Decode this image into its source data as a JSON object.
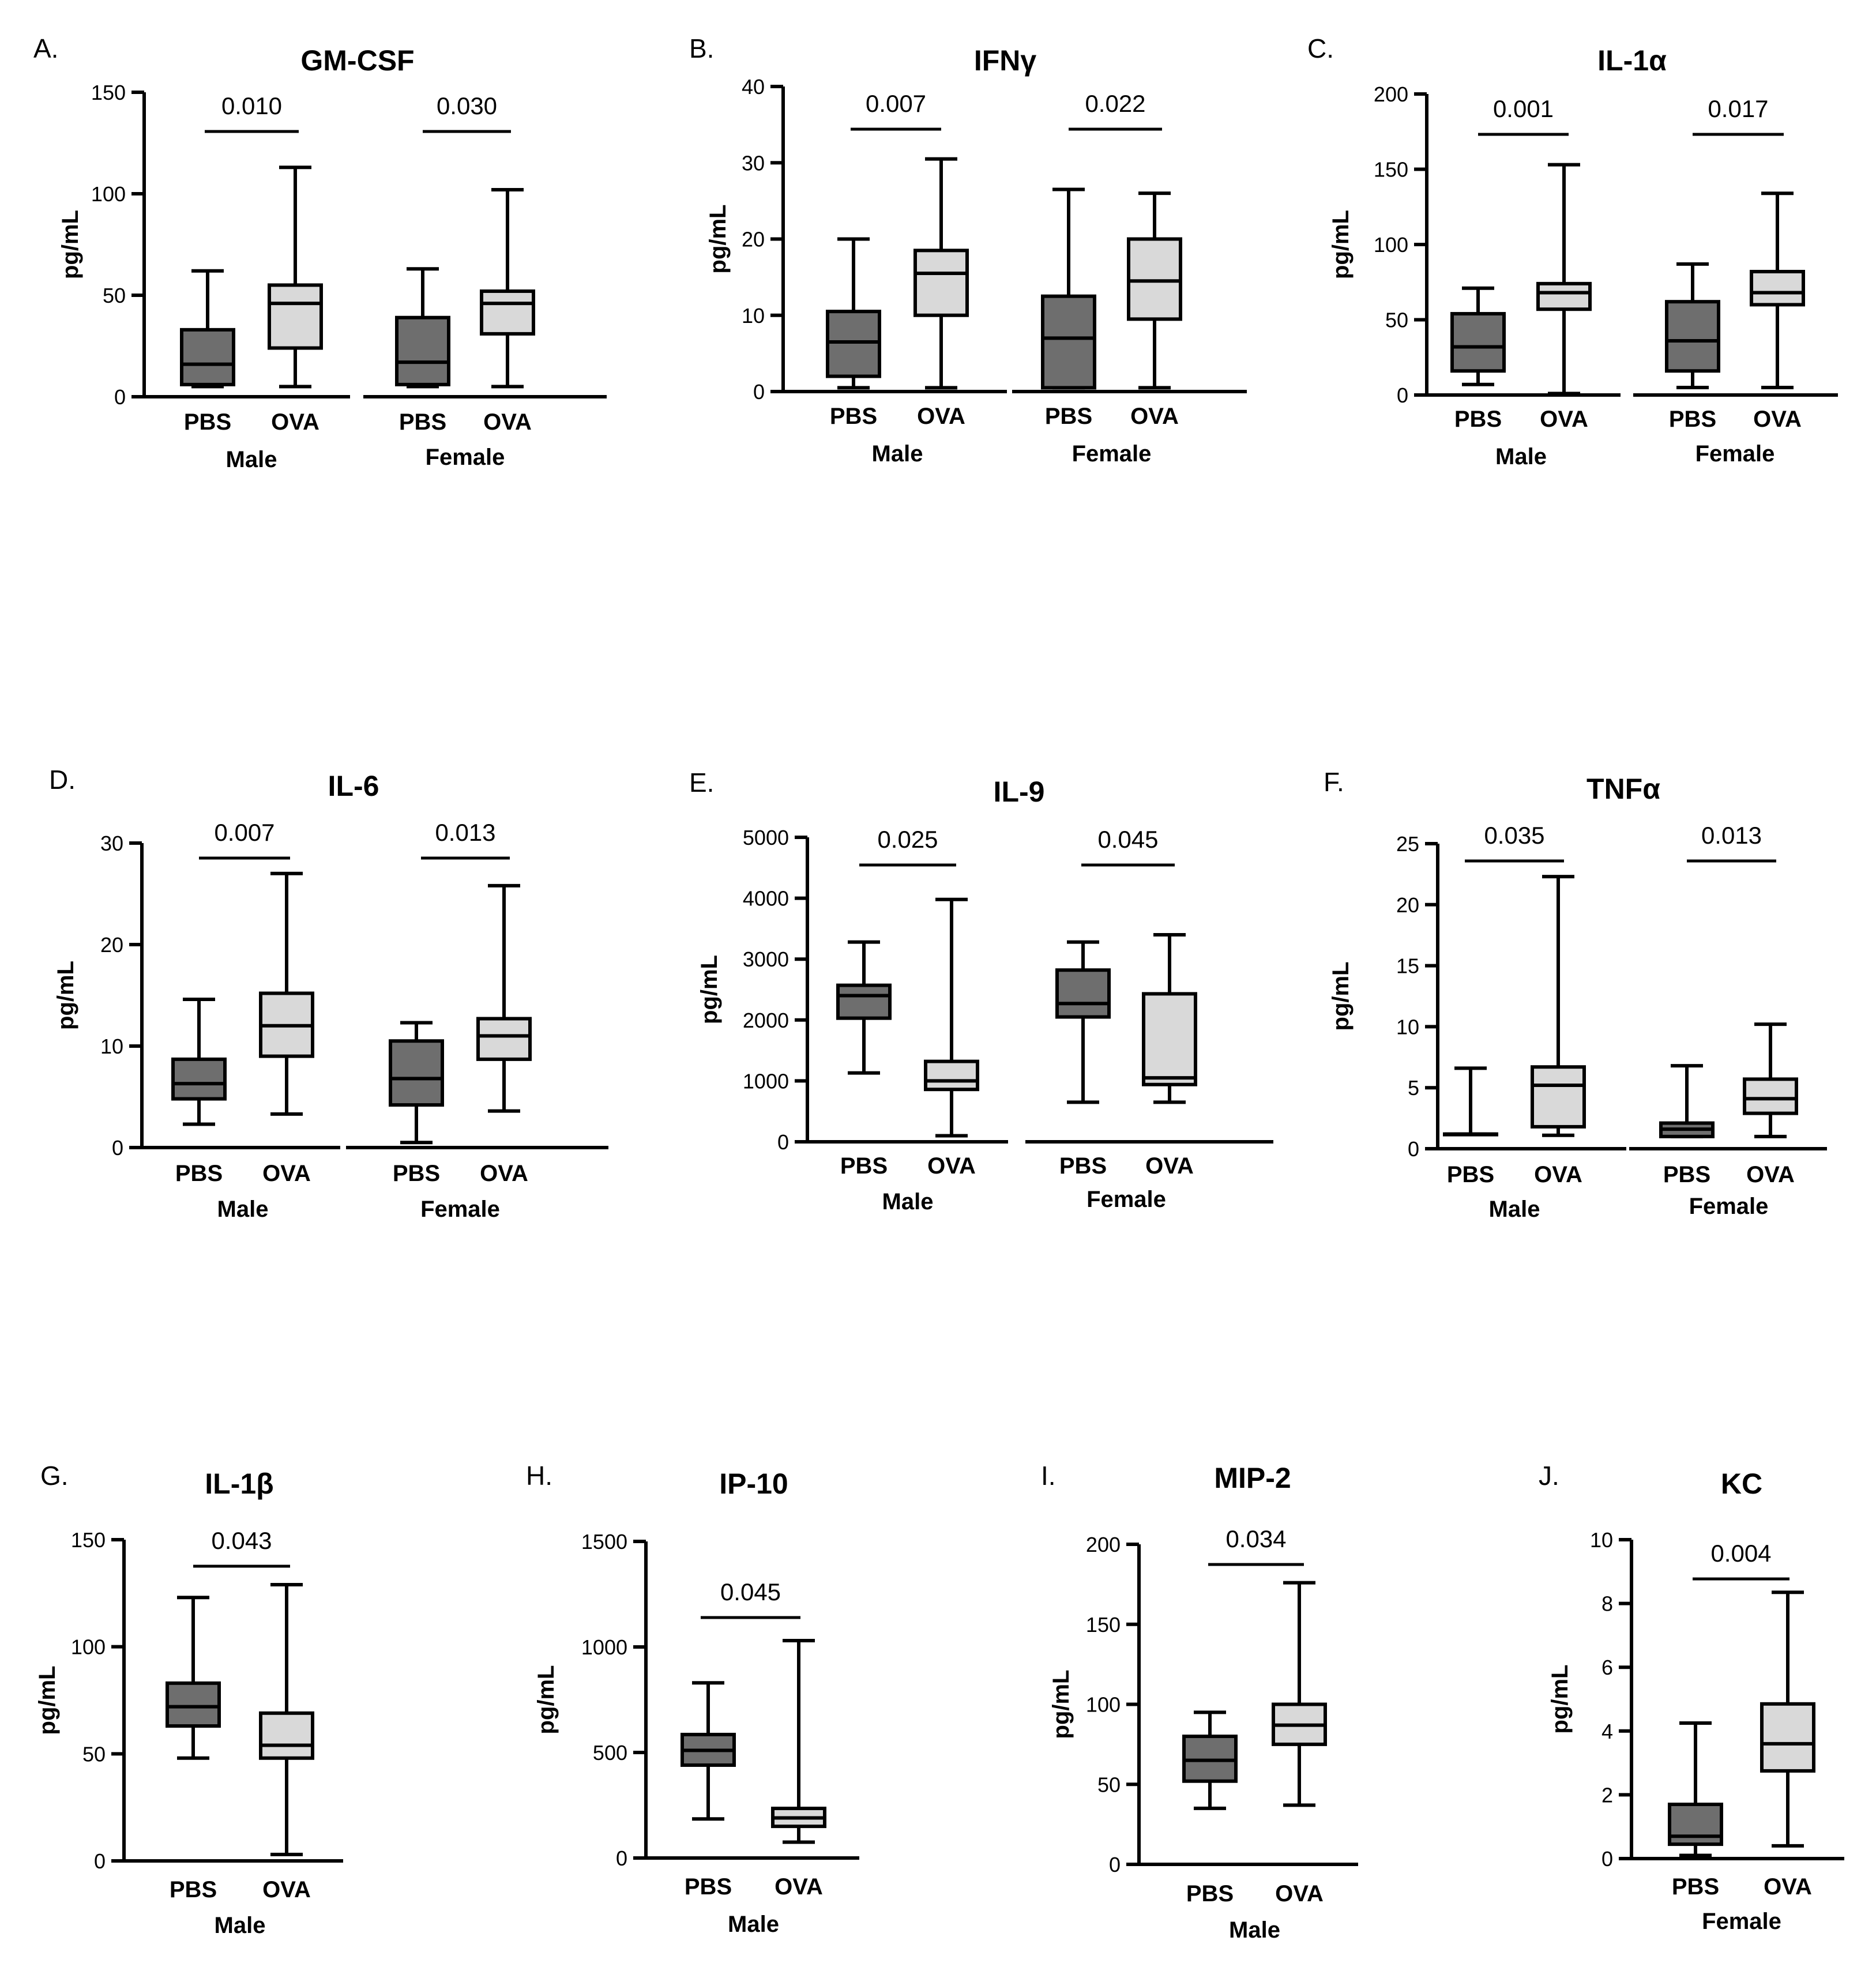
{
  "figure": {
    "box_colors": {
      "PBS": "#6e6e6e",
      "OVA": "#d9d9d9"
    },
    "stroke_color": "#000000",
    "categories": [
      "PBS",
      "OVA"
    ]
  },
  "chart_data": [
    {
      "id": "A",
      "type": "box",
      "panel_label": "A.",
      "title": "GM-CSF",
      "ylabel": "pg/mL",
      "ylim": [
        0,
        150
      ],
      "yticks": [
        "0",
        "50",
        "100",
        "150"
      ],
      "categories": [
        "PBS",
        "OVA"
      ],
      "groups": [
        {
          "name": "Male",
          "p_value": "0.010",
          "boxes": [
            {
              "category": "PBS",
              "min": 5,
              "q1": 6,
              "median": 16,
              "q3": 33,
              "max": 62
            },
            {
              "category": "OVA",
              "min": 5,
              "q1": 24,
              "median": 46,
              "q3": 55,
              "max": 113
            }
          ]
        },
        {
          "name": "Female",
          "p_value": "0.030",
          "boxes": [
            {
              "category": "PBS",
              "min": 5,
              "q1": 6,
              "median": 17,
              "q3": 39,
              "max": 63
            },
            {
              "category": "OVA",
              "min": 5,
              "q1": 31,
              "median": 46,
              "q3": 52,
              "max": 102
            }
          ]
        }
      ]
    },
    {
      "id": "B",
      "type": "box",
      "panel_label": "B.",
      "title": "IFNγ",
      "ylabel": "pg/mL",
      "ylim": [
        0,
        40
      ],
      "yticks": [
        "0",
        "10",
        "20",
        "30",
        "40"
      ],
      "categories": [
        "PBS",
        "OVA"
      ],
      "groups": [
        {
          "name": "Male",
          "p_value": "0.007",
          "boxes": [
            {
              "category": "PBS",
              "min": 0.5,
              "q1": 2,
              "median": 6.5,
              "q3": 10.5,
              "max": 20
            },
            {
              "category": "OVA",
              "min": 0.5,
              "q1": 10,
              "median": 15.5,
              "q3": 18.5,
              "max": 30.5
            }
          ]
        },
        {
          "name": "Female",
          "p_value": "0.022",
          "boxes": [
            {
              "category": "PBS",
              "min": 0.5,
              "q1": 0.5,
              "median": 7,
              "q3": 12.5,
              "max": 26.5
            },
            {
              "category": "OVA",
              "min": 0.5,
              "q1": 9.5,
              "median": 14.5,
              "q3": 20,
              "max": 26
            }
          ]
        }
      ]
    },
    {
      "id": "C",
      "type": "box",
      "panel_label": "C.",
      "title": "IL-1α",
      "ylabel": "pg/mL",
      "ylim": [
        0,
        200
      ],
      "yticks": [
        "0",
        "50",
        "100",
        "150",
        "200"
      ],
      "categories": [
        "PBS",
        "OVA"
      ],
      "groups": [
        {
          "name": "Male",
          "p_value": "0.001",
          "boxes": [
            {
              "category": "PBS",
              "min": 7,
              "q1": 16,
              "median": 32,
              "q3": 54,
              "max": 71
            },
            {
              "category": "OVA",
              "min": 1,
              "q1": 57,
              "median": 68,
              "q3": 74,
              "max": 153
            }
          ]
        },
        {
          "name": "Female",
          "p_value": "0.017",
          "boxes": [
            {
              "category": "PBS",
              "min": 5,
              "q1": 16,
              "median": 36,
              "q3": 62,
              "max": 87
            },
            {
              "category": "OVA",
              "min": 5,
              "q1": 60,
              "median": 68,
              "q3": 82,
              "max": 134
            }
          ]
        }
      ]
    },
    {
      "id": "D",
      "type": "box",
      "panel_label": "D.",
      "title": "IL-6",
      "ylabel": "pg/mL",
      "ylim": [
        0,
        30
      ],
      "yticks": [
        "0",
        "10",
        "20",
        "30"
      ],
      "categories": [
        "PBS",
        "OVA"
      ],
      "groups": [
        {
          "name": "Male",
          "p_value": "0.007",
          "boxes": [
            {
              "category": "PBS",
              "min": 2.3,
              "q1": 4.8,
              "median": 6.3,
              "q3": 8.7,
              "max": 14.6
            },
            {
              "category": "OVA",
              "min": 3.3,
              "q1": 9,
              "median": 12,
              "q3": 15.2,
              "max": 27
            }
          ]
        },
        {
          "name": "Female",
          "p_value": "0.013",
          "boxes": [
            {
              "category": "PBS",
              "min": 0.5,
              "q1": 4.2,
              "median": 6.8,
              "q3": 10.5,
              "max": 12.3
            },
            {
              "category": "OVA",
              "min": 3.6,
              "q1": 8.7,
              "median": 11,
              "q3": 12.7,
              "max": 25.8
            }
          ]
        }
      ]
    },
    {
      "id": "E",
      "type": "box",
      "panel_label": "E.",
      "title": "IL-9",
      "ylabel": "pg/mL",
      "ylim": [
        0,
        5000
      ],
      "yticks": [
        "0",
        "1000",
        "2000",
        "3000",
        "4000",
        "5000"
      ],
      "categories": [
        "PBS",
        "OVA"
      ],
      "groups": [
        {
          "name": "Male",
          "p_value": "0.025",
          "boxes": [
            {
              "category": "PBS",
              "min": 1130,
              "q1": 2030,
              "median": 2400,
              "q3": 2570,
              "max": 3280
            },
            {
              "category": "OVA",
              "min": 100,
              "q1": 860,
              "median": 1000,
              "q3": 1320,
              "max": 3980
            }
          ]
        },
        {
          "name": "Female",
          "p_value": "0.045",
          "boxes": [
            {
              "category": "PBS",
              "min": 650,
              "q1": 2050,
              "median": 2270,
              "q3": 2820,
              "max": 3280
            },
            {
              "category": "OVA",
              "min": 650,
              "q1": 940,
              "median": 1050,
              "q3": 2430,
              "max": 3400
            }
          ]
        }
      ]
    },
    {
      "id": "F",
      "type": "box",
      "panel_label": "F.",
      "title": "TNFα",
      "ylabel": "pg/mL",
      "ylim": [
        0,
        25
      ],
      "yticks": [
        "0",
        "5",
        "10",
        "15",
        "20",
        "25"
      ],
      "categories": [
        "PBS",
        "OVA"
      ],
      "groups": [
        {
          "name": "Male",
          "p_value": "0.035",
          "boxes": [
            {
              "category": "PBS",
              "min": 1.2,
              "q1": 1.2,
              "median": 1.2,
              "q3": 1.2,
              "max": 6.6
            },
            {
              "category": "OVA",
              "min": 1.1,
              "q1": 1.8,
              "median": 5.2,
              "q3": 6.7,
              "max": 22.3
            }
          ]
        },
        {
          "name": "Female",
          "p_value": "0.013",
          "boxes": [
            {
              "category": "PBS",
              "min": 1,
              "q1": 1,
              "median": 1.6,
              "q3": 2.1,
              "max": 6.8
            },
            {
              "category": "OVA",
              "min": 1,
              "q1": 2.9,
              "median": 4.1,
              "q3": 5.7,
              "max": 10.2
            }
          ]
        }
      ]
    },
    {
      "id": "G",
      "type": "box",
      "panel_label": "G.",
      "title": "IL-1β",
      "ylabel": "pg/mL",
      "ylim": [
        0,
        150
      ],
      "yticks": [
        "0",
        "50",
        "100",
        "150"
      ],
      "categories": [
        "PBS",
        "OVA"
      ],
      "groups": [
        {
          "name": "Male",
          "p_value": "0.043",
          "boxes": [
            {
              "category": "PBS",
              "min": 48,
              "q1": 63,
              "median": 72,
              "q3": 83,
              "max": 123
            },
            {
              "category": "OVA",
              "min": 3,
              "q1": 48,
              "median": 54,
              "q3": 69,
              "max": 129
            }
          ]
        }
      ]
    },
    {
      "id": "H",
      "type": "box",
      "panel_label": "H.",
      "title": "IP-10",
      "ylabel": "pg/mL",
      "ylim": [
        0,
        1500
      ],
      "yticks": [
        "0",
        "500",
        "1000",
        "1500"
      ],
      "categories": [
        "PBS",
        "OVA"
      ],
      "groups": [
        {
          "name": "Male",
          "p_value": "0.045",
          "boxes": [
            {
              "category": "PBS",
              "min": 185,
              "q1": 440,
              "median": 510,
              "q3": 585,
              "max": 830
            },
            {
              "category": "OVA",
              "min": 75,
              "q1": 150,
              "median": 190,
              "q3": 235,
              "max": 1030
            }
          ]
        }
      ]
    },
    {
      "id": "I",
      "type": "box",
      "panel_label": "I.",
      "title": "MIP-2",
      "ylabel": "pg/mL",
      "ylim": [
        0,
        200
      ],
      "yticks": [
        "0",
        "50",
        "100",
        "150",
        "200"
      ],
      "categories": [
        "PBS",
        "OVA"
      ],
      "groups": [
        {
          "name": "Male",
          "p_value": "0.034",
          "boxes": [
            {
              "category": "PBS",
              "min": 35,
              "q1": 52,
              "median": 65,
              "q3": 80,
              "max": 95
            },
            {
              "category": "OVA",
              "min": 37,
              "q1": 75,
              "median": 87,
              "q3": 100,
              "max": 176
            }
          ]
        }
      ]
    },
    {
      "id": "J",
      "type": "box",
      "panel_label": "J.",
      "title": "KC",
      "ylabel": "pg/mL",
      "ylim": [
        0,
        10
      ],
      "yticks": [
        "0",
        "2",
        "4",
        "6",
        "8",
        "10"
      ],
      "categories": [
        "PBS",
        "OVA"
      ],
      "groups": [
        {
          "name": "Female",
          "p_value": "0.004",
          "boxes": [
            {
              "category": "PBS",
              "min": 0.1,
              "q1": 0.45,
              "median": 0.7,
              "q3": 1.7,
              "max": 4.25
            },
            {
              "category": "OVA",
              "min": 0.4,
              "q1": 2.75,
              "median": 3.6,
              "q3": 4.85,
              "max": 8.35
            }
          ]
        }
      ]
    }
  ]
}
